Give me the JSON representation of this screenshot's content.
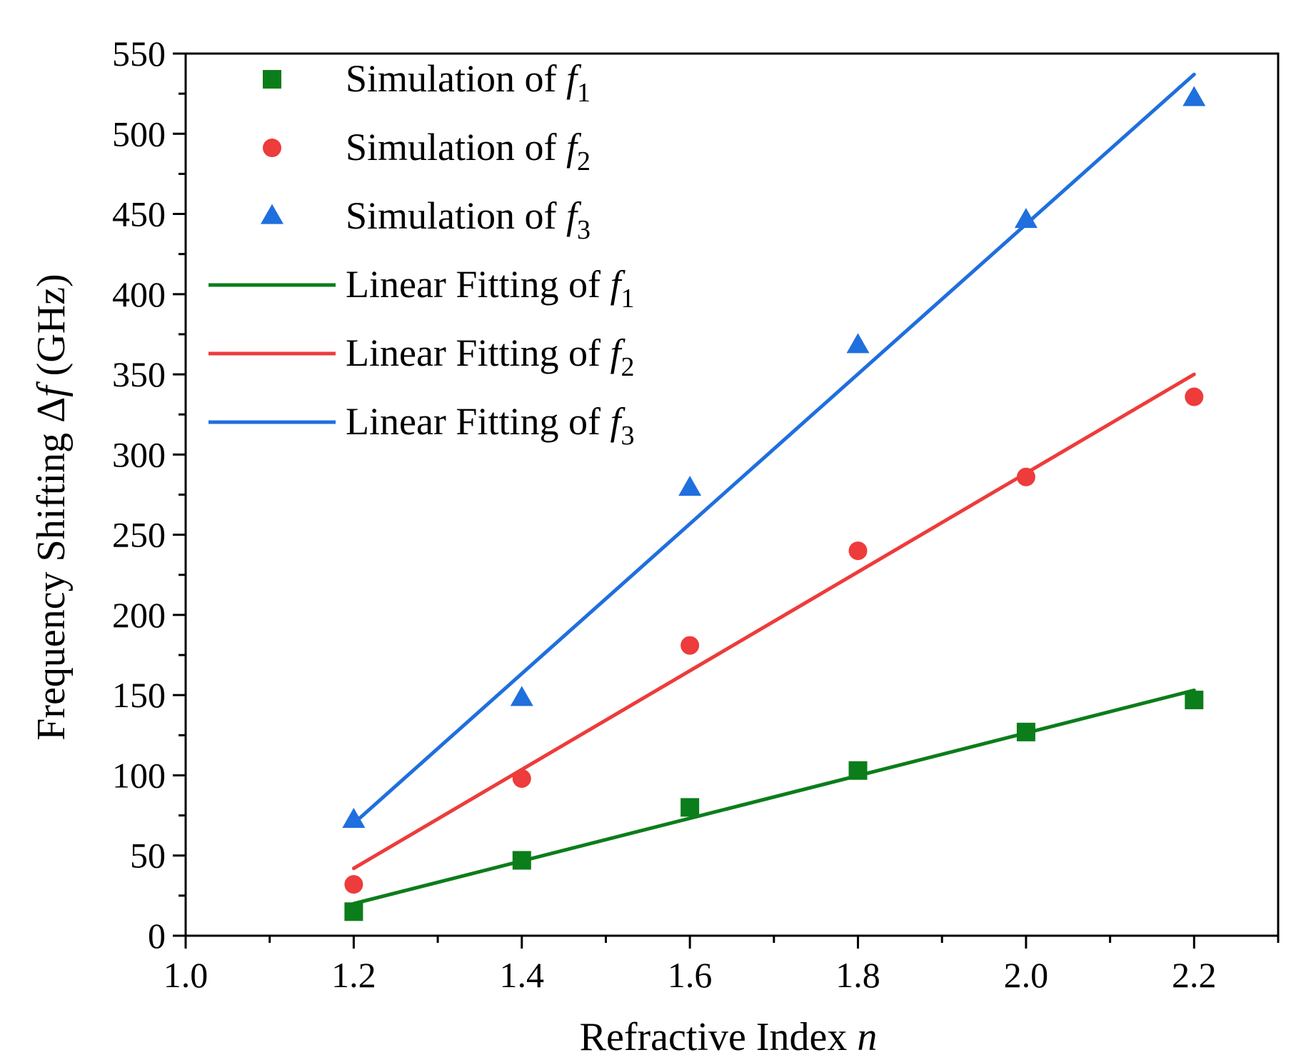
{
  "chart_data": {
    "type": "scatter",
    "xlabel": {
      "text": "Refractive Index ",
      "var": "n"
    },
    "ylabel": {
      "text": "Frequency Shifting Δ",
      "var": "f",
      "unit": " (GHz)"
    },
    "xlim": [
      1.0,
      2.3
    ],
    "ylim": [
      0,
      550
    ],
    "xticks": [
      "1.0",
      "1.2",
      "1.4",
      "1.6",
      "1.8",
      "2.0",
      "2.2"
    ],
    "yticks": [
      "0",
      "50",
      "100",
      "150",
      "200",
      "250",
      "300",
      "350",
      "400",
      "450",
      "500",
      "550"
    ],
    "grid": false,
    "legend_position": "top-left",
    "colors": {
      "f1": "#0b7d1a",
      "f2": "#ee3b3b",
      "f3": "#1f6fde"
    },
    "series": [
      {
        "name": "Simulation of f1",
        "kind": "scatter",
        "marker": "square",
        "color_key": "f1",
        "x": [
          1.2,
          1.4,
          1.6,
          1.8,
          2.0,
          2.2
        ],
        "y": [
          15,
          47,
          80,
          103,
          127,
          147
        ]
      },
      {
        "name": "Simulation of f2",
        "kind": "scatter",
        "marker": "circle",
        "color_key": "f2",
        "x": [
          1.2,
          1.4,
          1.6,
          1.8,
          2.0,
          2.2
        ],
        "y": [
          32,
          98,
          181,
          240,
          286,
          336
        ]
      },
      {
        "name": "Simulation of f3",
        "kind": "scatter",
        "marker": "triangle",
        "color_key": "f3",
        "x": [
          1.2,
          1.4,
          1.6,
          1.8,
          2.0,
          2.2
        ],
        "y": [
          72,
          148,
          279,
          368,
          446,
          522
        ]
      },
      {
        "name": "Linear Fitting of f1",
        "kind": "line",
        "color_key": "f1",
        "x": [
          1.2,
          2.2
        ],
        "y": [
          20,
          153
        ]
      },
      {
        "name": "Linear Fitting of f2",
        "kind": "line",
        "color_key": "f2",
        "x": [
          1.2,
          2.2
        ],
        "y": [
          42,
          350
        ]
      },
      {
        "name": "Linear Fitting of f3",
        "kind": "line",
        "color_key": "f3",
        "x": [
          1.2,
          2.2
        ],
        "y": [
          70,
          537
        ]
      }
    ],
    "legend": [
      {
        "prefix": "Simulation of ",
        "var": "f",
        "sub": "1",
        "swatch": "square",
        "color_key": "f1"
      },
      {
        "prefix": "Simulation of ",
        "var": "f",
        "sub": "2",
        "swatch": "circle",
        "color_key": "f2"
      },
      {
        "prefix": "Simulation of ",
        "var": "f",
        "sub": "3",
        "swatch": "triangle",
        "color_key": "f3"
      },
      {
        "prefix": "Linear Fitting of ",
        "var": "f",
        "sub": "1",
        "swatch": "line",
        "color_key": "f1"
      },
      {
        "prefix": "Linear Fitting of ",
        "var": "f",
        "sub": "2",
        "swatch": "line",
        "color_key": "f2"
      },
      {
        "prefix": "Linear Fitting of ",
        "var": "f",
        "sub": "3",
        "swatch": "line",
        "color_key": "f3"
      }
    ]
  }
}
